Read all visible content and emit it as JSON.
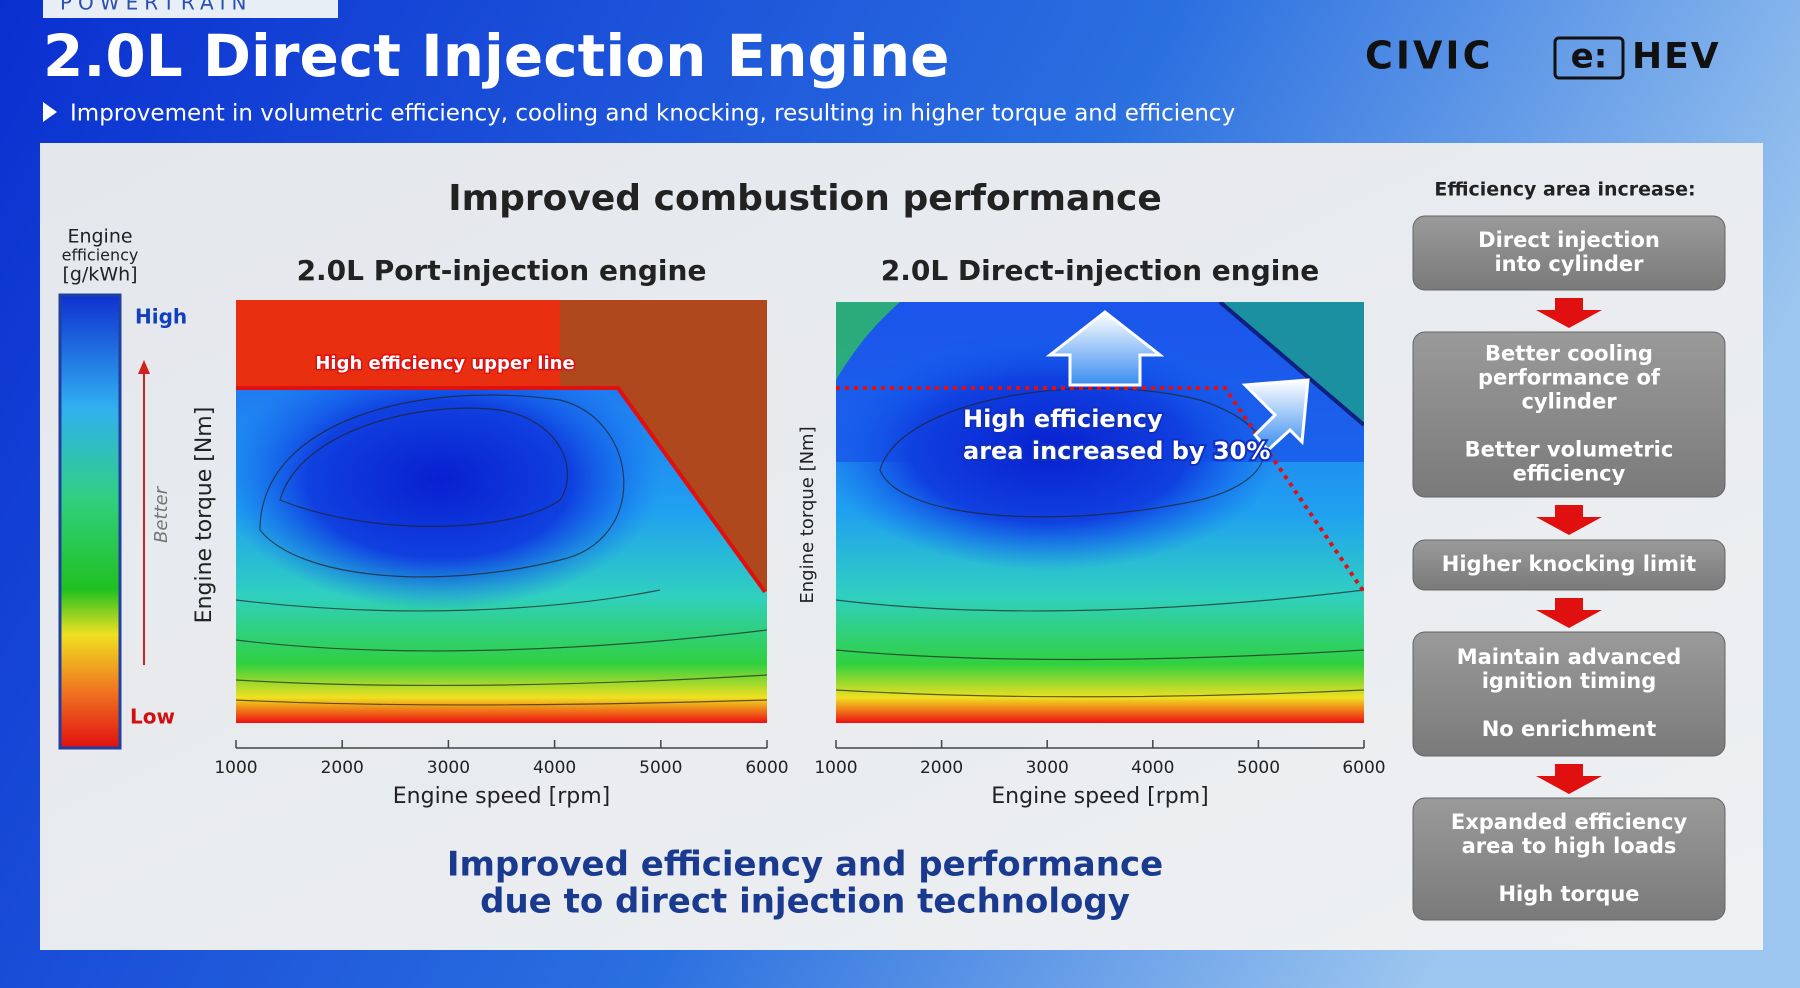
{
  "header": {
    "tag": "POWERTRAIN",
    "title": "2.0L Direct Injection Engine",
    "brand": "CIVIC",
    "brand_badge": "e:",
    "brand_suffix": "HEV",
    "subtitle": "Improvement in volumetric efficiency, cooling and knocking, resulting in higher torque and efficiency"
  },
  "panel": {
    "title": "Improved combustion performance",
    "legend": {
      "title": [
        "Engine",
        "efficiency",
        "[g/kWh]"
      ],
      "high": "High",
      "low": "Low",
      "arrow": "Better"
    },
    "charts": [
      {
        "title": "2.0L Port-injection engine",
        "xlabel": "Engine speed [rpm]",
        "ylabel": "Engine torque [Nm]",
        "xlim": [
          1000,
          6000
        ],
        "xticks": [
          1000,
          2000,
          3000,
          4000,
          5000,
          6000
        ],
        "annotation": [
          "High efficiency upper line"
        ]
      },
      {
        "title": "2.0L Direct-injection engine",
        "xlabel": "Engine speed [rpm]",
        "ylabel": "Engine torque [Nm]",
        "xlim": [
          1000,
          6000
        ],
        "xticks": [
          1000,
          2000,
          3000,
          4000,
          5000,
          6000
        ],
        "annotation": [
          "High efficiency",
          "area increased by 30%"
        ]
      }
    ],
    "conclusion": [
      "Improved efficiency and performance",
      "due to direct injection technology"
    ]
  },
  "sidebar": {
    "title": "Efficiency area increase:",
    "steps": [
      [
        [
          "Direct injection",
          "into cylinder"
        ]
      ],
      [
        [
          "Better cooling",
          "performance of",
          "cylinder"
        ],
        [
          "Better volumetric",
          "efficiency"
        ]
      ],
      [
        [
          "Higher knocking limit"
        ]
      ],
      [
        [
          "Maintain advanced",
          "ignition timing"
        ],
        [
          "No enrichment"
        ]
      ],
      [
        [
          "Expanded efficiency",
          "area to high loads"
        ],
        [
          "High torque"
        ]
      ]
    ]
  }
}
